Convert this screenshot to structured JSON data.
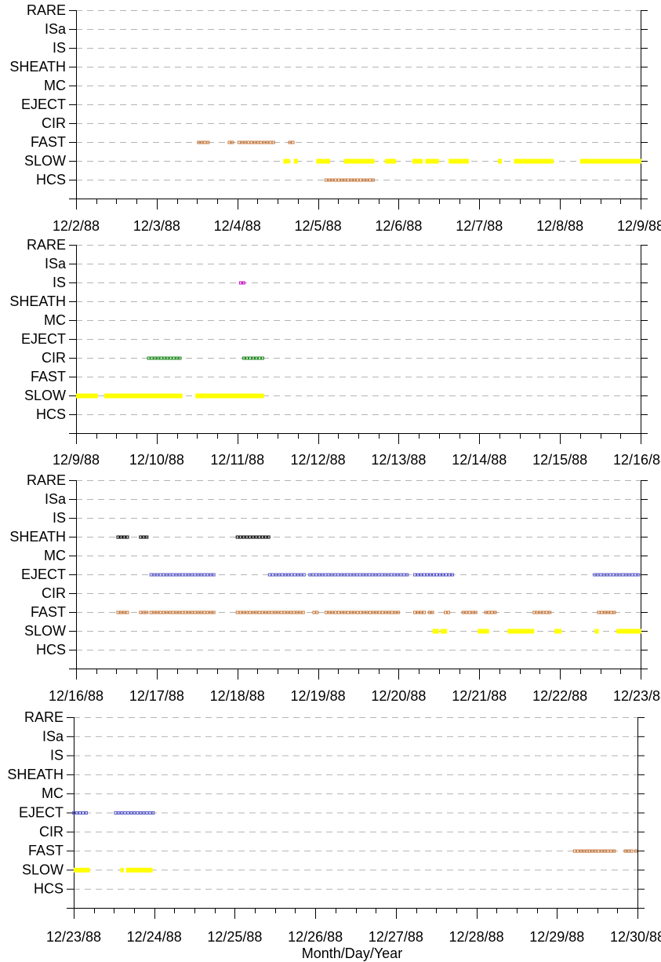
{
  "chart_data": {
    "type": "scatter",
    "title": "",
    "xlabel": "Month/Day/Year",
    "ylabel": "",
    "grid": true,
    "legend": "none",
    "categories": [
      "HCS",
      "SLOW",
      "FAST",
      "CIR",
      "EJECT",
      "MC",
      "SHEATH",
      "IS",
      "ISa",
      "RARE"
    ],
    "colors": {
      "HCS": "#c8783c",
      "FAST": "#c8783c",
      "SLOW": "#ffff00",
      "CIR": "#1a8a1a",
      "EJECT": "#5a5acc",
      "SHEATH": "#000000",
      "IS": "#cc00cc"
    },
    "panels": [
      {
        "ticks": [
          "12/2/88",
          "12/3/88",
          "12/4/88",
          "12/5/88",
          "12/6/88",
          "12/7/88",
          "12/8/88",
          "12/9/88"
        ],
        "xlim": [
          0,
          7
        ],
        "series": [
          {
            "name": "FAST",
            "style": "dots",
            "segments": [
              [
                1.52,
                1.65
              ],
              [
                1.9,
                1.97
              ],
              [
                2.02,
                2.45
              ],
              [
                2.65,
                2.7
              ]
            ]
          },
          {
            "name": "SLOW",
            "style": "thick",
            "segments": [
              [
                2.57,
                2.65
              ],
              [
                2.7,
                2.75
              ],
              [
                2.98,
                3.15
              ],
              [
                3.32,
                3.7
              ],
              [
                3.83,
                3.97
              ],
              [
                4.17,
                4.3
              ],
              [
                4.33,
                4.5
              ],
              [
                4.62,
                4.87
              ],
              [
                5.23,
                5.28
              ],
              [
                5.43,
                5.92
              ],
              [
                6.25,
                7.17
              ]
            ]
          },
          {
            "name": "HCS",
            "style": "dots",
            "segments": [
              [
                3.1,
                3.72
              ]
            ]
          }
        ]
      },
      {
        "ticks": [
          "12/9/88",
          "12/10/88",
          "12/11/88",
          "12/12/88",
          "12/13/88",
          "12/14/88",
          "12/15/88",
          "12/16/88"
        ],
        "xlim": [
          0,
          7
        ],
        "series": [
          {
            "name": "IS",
            "style": "dots",
            "segments": [
              [
                2.04,
                2.08
              ]
            ]
          },
          {
            "name": "CIR",
            "style": "dots",
            "segments": [
              [
                0.9,
                1.32
              ],
              [
                2.08,
                2.33
              ]
            ]
          },
          {
            "name": "SLOW",
            "style": "thick",
            "segments": [
              [
                0.0,
                0.27
              ],
              [
                0.35,
                1.32
              ],
              [
                1.48,
                2.33
              ]
            ]
          }
        ]
      },
      {
        "ticks": [
          "12/16/88",
          "12/17/88",
          "12/18/88",
          "12/19/88",
          "12/20/88",
          "12/21/88",
          "12/22/88",
          "12/23/88"
        ],
        "xlim": [
          0,
          7
        ],
        "series": [
          {
            "name": "SHEATH",
            "style": "dots",
            "segments": [
              [
                0.52,
                0.65
              ],
              [
                0.8,
                0.88
              ],
              [
                2.0,
                2.4
              ]
            ]
          },
          {
            "name": "EJECT",
            "style": "dots",
            "segments": [
              [
                0.93,
                1.73
              ],
              [
                2.4,
                2.83
              ],
              [
                2.9,
                4.12
              ],
              [
                4.2,
                4.68
              ],
              [
                6.43,
                7.17
              ]
            ]
          },
          {
            "name": "FAST",
            "style": "dots",
            "segments": [
              [
                0.52,
                0.65
              ],
              [
                0.8,
                0.88
              ],
              [
                0.93,
                1.73
              ],
              [
                2.0,
                2.83
              ],
              [
                2.95,
                3.0
              ],
              [
                3.1,
                4.0
              ],
              [
                4.2,
                4.35
              ],
              [
                4.38,
                4.42
              ],
              [
                4.58,
                4.62
              ],
              [
                4.8,
                4.98
              ],
              [
                5.08,
                5.2
              ],
              [
                5.68,
                5.9
              ],
              [
                6.48,
                6.7
              ]
            ]
          },
          {
            "name": "SLOW",
            "style": "thick",
            "segments": [
              [
                4.42,
                4.5
              ],
              [
                4.52,
                4.6
              ],
              [
                4.98,
                5.12
              ],
              [
                5.35,
                5.68
              ],
              [
                5.93,
                6.02
              ],
              [
                6.43,
                6.48
              ],
              [
                6.7,
                7.17
              ]
            ]
          }
        ]
      },
      {
        "ticks": [
          "12/23/88",
          "12/24/88",
          "12/25/88",
          "12/26/88",
          "12/27/88",
          "12/28/88",
          "12/29/88",
          "12/30/88"
        ],
        "xlim": [
          0,
          7
        ],
        "series": [
          {
            "name": "EJECT",
            "style": "dots",
            "segments": [
              [
                0.0,
                0.18
              ],
              [
                0.52,
                1.02
              ]
            ]
          },
          {
            "name": "FAST",
            "style": "dots",
            "segments": [
              [
                6.22,
                6.38
              ],
              [
                6.4,
                6.75
              ],
              [
                6.85,
                6.95
              ],
              [
                6.98,
                7.08
              ],
              [
                7.12,
                7.17
              ]
            ]
          },
          {
            "name": "SLOW",
            "style": "thick",
            "segments": [
              [
                0.0,
                0.2
              ],
              [
                0.58,
                0.62
              ],
              [
                0.65,
                0.98
              ]
            ]
          }
        ]
      }
    ]
  }
}
